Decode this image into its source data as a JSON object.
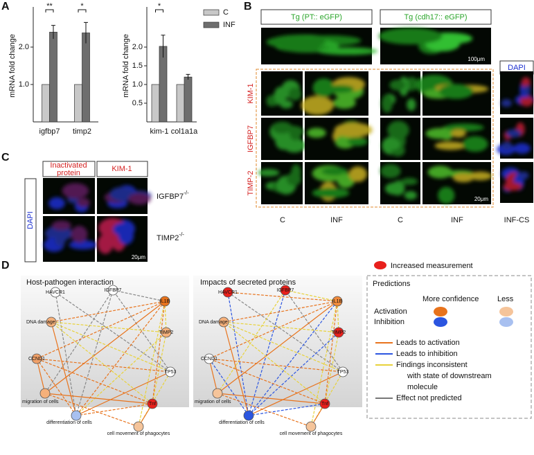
{
  "panel_labels": [
    "A",
    "B",
    "C",
    "D"
  ],
  "chart_data": [
    {
      "type": "bar",
      "y_label": "mRNA fold change",
      "categories": [
        "igfbp7",
        "timp2"
      ],
      "series": [
        {
          "name": "C",
          "color": "#c8c8c8",
          "values": [
            1,
            1
          ]
        },
        {
          "name": "INF",
          "color": "#6e6e6e",
          "values": [
            2.4,
            2.38
          ],
          "errors": [
            0.18,
            0.28
          ]
        }
      ],
      "ylim": [
        0,
        3
      ],
      "yticks": [
        {
          "value": 1,
          "label": "1.0"
        },
        {
          "value": 2,
          "label": "2.0"
        }
      ],
      "annotations": [
        "**",
        "*"
      ]
    },
    {
      "type": "bar",
      "y_label": "mRNA fold change",
      "categories": [
        "kim-1",
        "col1a1a"
      ],
      "series": [
        {
          "name": "C",
          "color": "#c8c8c8",
          "values": [
            1,
            1
          ]
        },
        {
          "name": "INF",
          "color": "#6e6e6e",
          "values": [
            2.02,
            1.2
          ],
          "errors": [
            0.3,
            0.07
          ]
        }
      ],
      "ylim": [
        0,
        3
      ],
      "yticks": [
        {
          "value": 0.5,
          "label": "0.5"
        },
        {
          "value": 1,
          "label": "1.0"
        },
        {
          "value": 1.5,
          "label": "1.5"
        },
        {
          "value": 2,
          "label": "2.0"
        }
      ],
      "annotations": [
        "*"
      ],
      "legend": "right"
    }
  ],
  "panel_b": {
    "headers": [
      "Tg (PT:: eGFP)",
      "Tg (cdh17:: eGFP)"
    ],
    "dapi": "DAPI",
    "rows": [
      "KIM-1",
      "IGFBP7",
      "TIMP-2"
    ],
    "columns": [
      "C",
      "INF",
      "C",
      "INF",
      "INF-CS"
    ],
    "scale_bars": [
      "100μm",
      "20μm"
    ]
  },
  "panel_c": {
    "header_lines": [
      "Inactivated",
      "protein"
    ],
    "header_kim": "KIM-1",
    "dapi": "DAPI",
    "genotypes": [
      {
        "gene": "IGFBP7",
        "sup": "-/-"
      },
      {
        "gene": "TIMP2",
        "sup": "-/-"
      }
    ],
    "scale_bar": "20μm"
  },
  "panel_d": {
    "network_titles": [
      "Host-pathogen interaction",
      "Impacts of secreted proteins"
    ],
    "nodes": [
      "HAVCR1",
      "IGFBP7",
      "IL1B",
      "DNA damage",
      "TIMP2",
      "CCND1",
      "TP53",
      "migration of cells",
      "Tnf",
      "differentiation of cells",
      "cell movement of phagocytes"
    ],
    "legend": {
      "increased": "Increased measurement",
      "predictions": "Predictions",
      "more": "More confidence",
      "less": "Less",
      "activation": "Activation",
      "inhibition": "Inhibition",
      "edges": [
        "Leads to activation",
        "Leads to inhibition",
        "Findings inconsistent",
        "with state of downstream",
        "molecule",
        "Effect not predicted"
      ]
    }
  }
}
